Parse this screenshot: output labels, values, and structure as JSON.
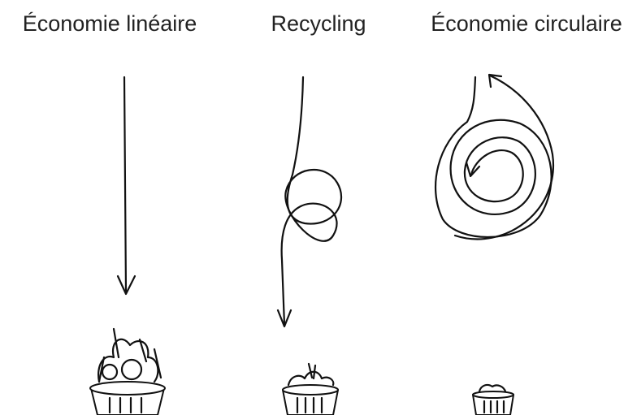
{
  "columns": [
    {
      "title": "Économie linéaire"
    },
    {
      "title": "Recycling"
    },
    {
      "title": "Économie circulaire"
    }
  ]
}
